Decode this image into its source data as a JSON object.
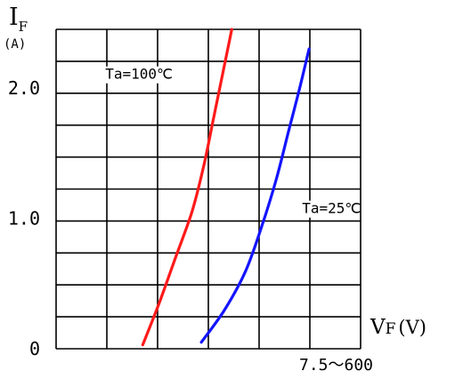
{
  "chart_data": {
    "type": "line",
    "title": "",
    "ylabel_main": "I",
    "ylabel_sub": "F",
    "yunit": "(A)",
    "xlabel_main": "V",
    "xlabel_sub": "F",
    "xunit": "(V)",
    "xrange_note": "7.5～600",
    "yticks": [
      {
        "value": 0,
        "label": "0"
      },
      {
        "value": 1.0,
        "label": "1.0"
      },
      {
        "value": 2.0,
        "label": "2.0"
      }
    ],
    "ylim": [
      0,
      2.45
    ],
    "xlim": [
      0,
      6.5
    ],
    "grid": true,
    "series": [
      {
        "name": "Ta=100℃",
        "color": "#ff1a1a",
        "label_at": {
          "x": 1.05,
          "y": 2.07
        },
        "x": [
          1.85,
          2.2,
          2.55,
          2.9,
          3.15,
          3.35,
          3.55,
          3.75
        ],
        "y": [
          0.03,
          0.35,
          0.7,
          1.05,
          1.4,
          1.75,
          2.1,
          2.45
        ]
      },
      {
        "name": "Ta=25℃",
        "color": "#1414ff",
        "label_at": {
          "x": 5.25,
          "y": 1.04
        },
        "x": [
          3.1,
          3.6,
          4.05,
          4.4,
          4.7,
          4.95,
          5.2,
          5.4
        ],
        "y": [
          0.05,
          0.3,
          0.6,
          0.95,
          1.3,
          1.65,
          2.0,
          2.3
        ]
      }
    ]
  }
}
